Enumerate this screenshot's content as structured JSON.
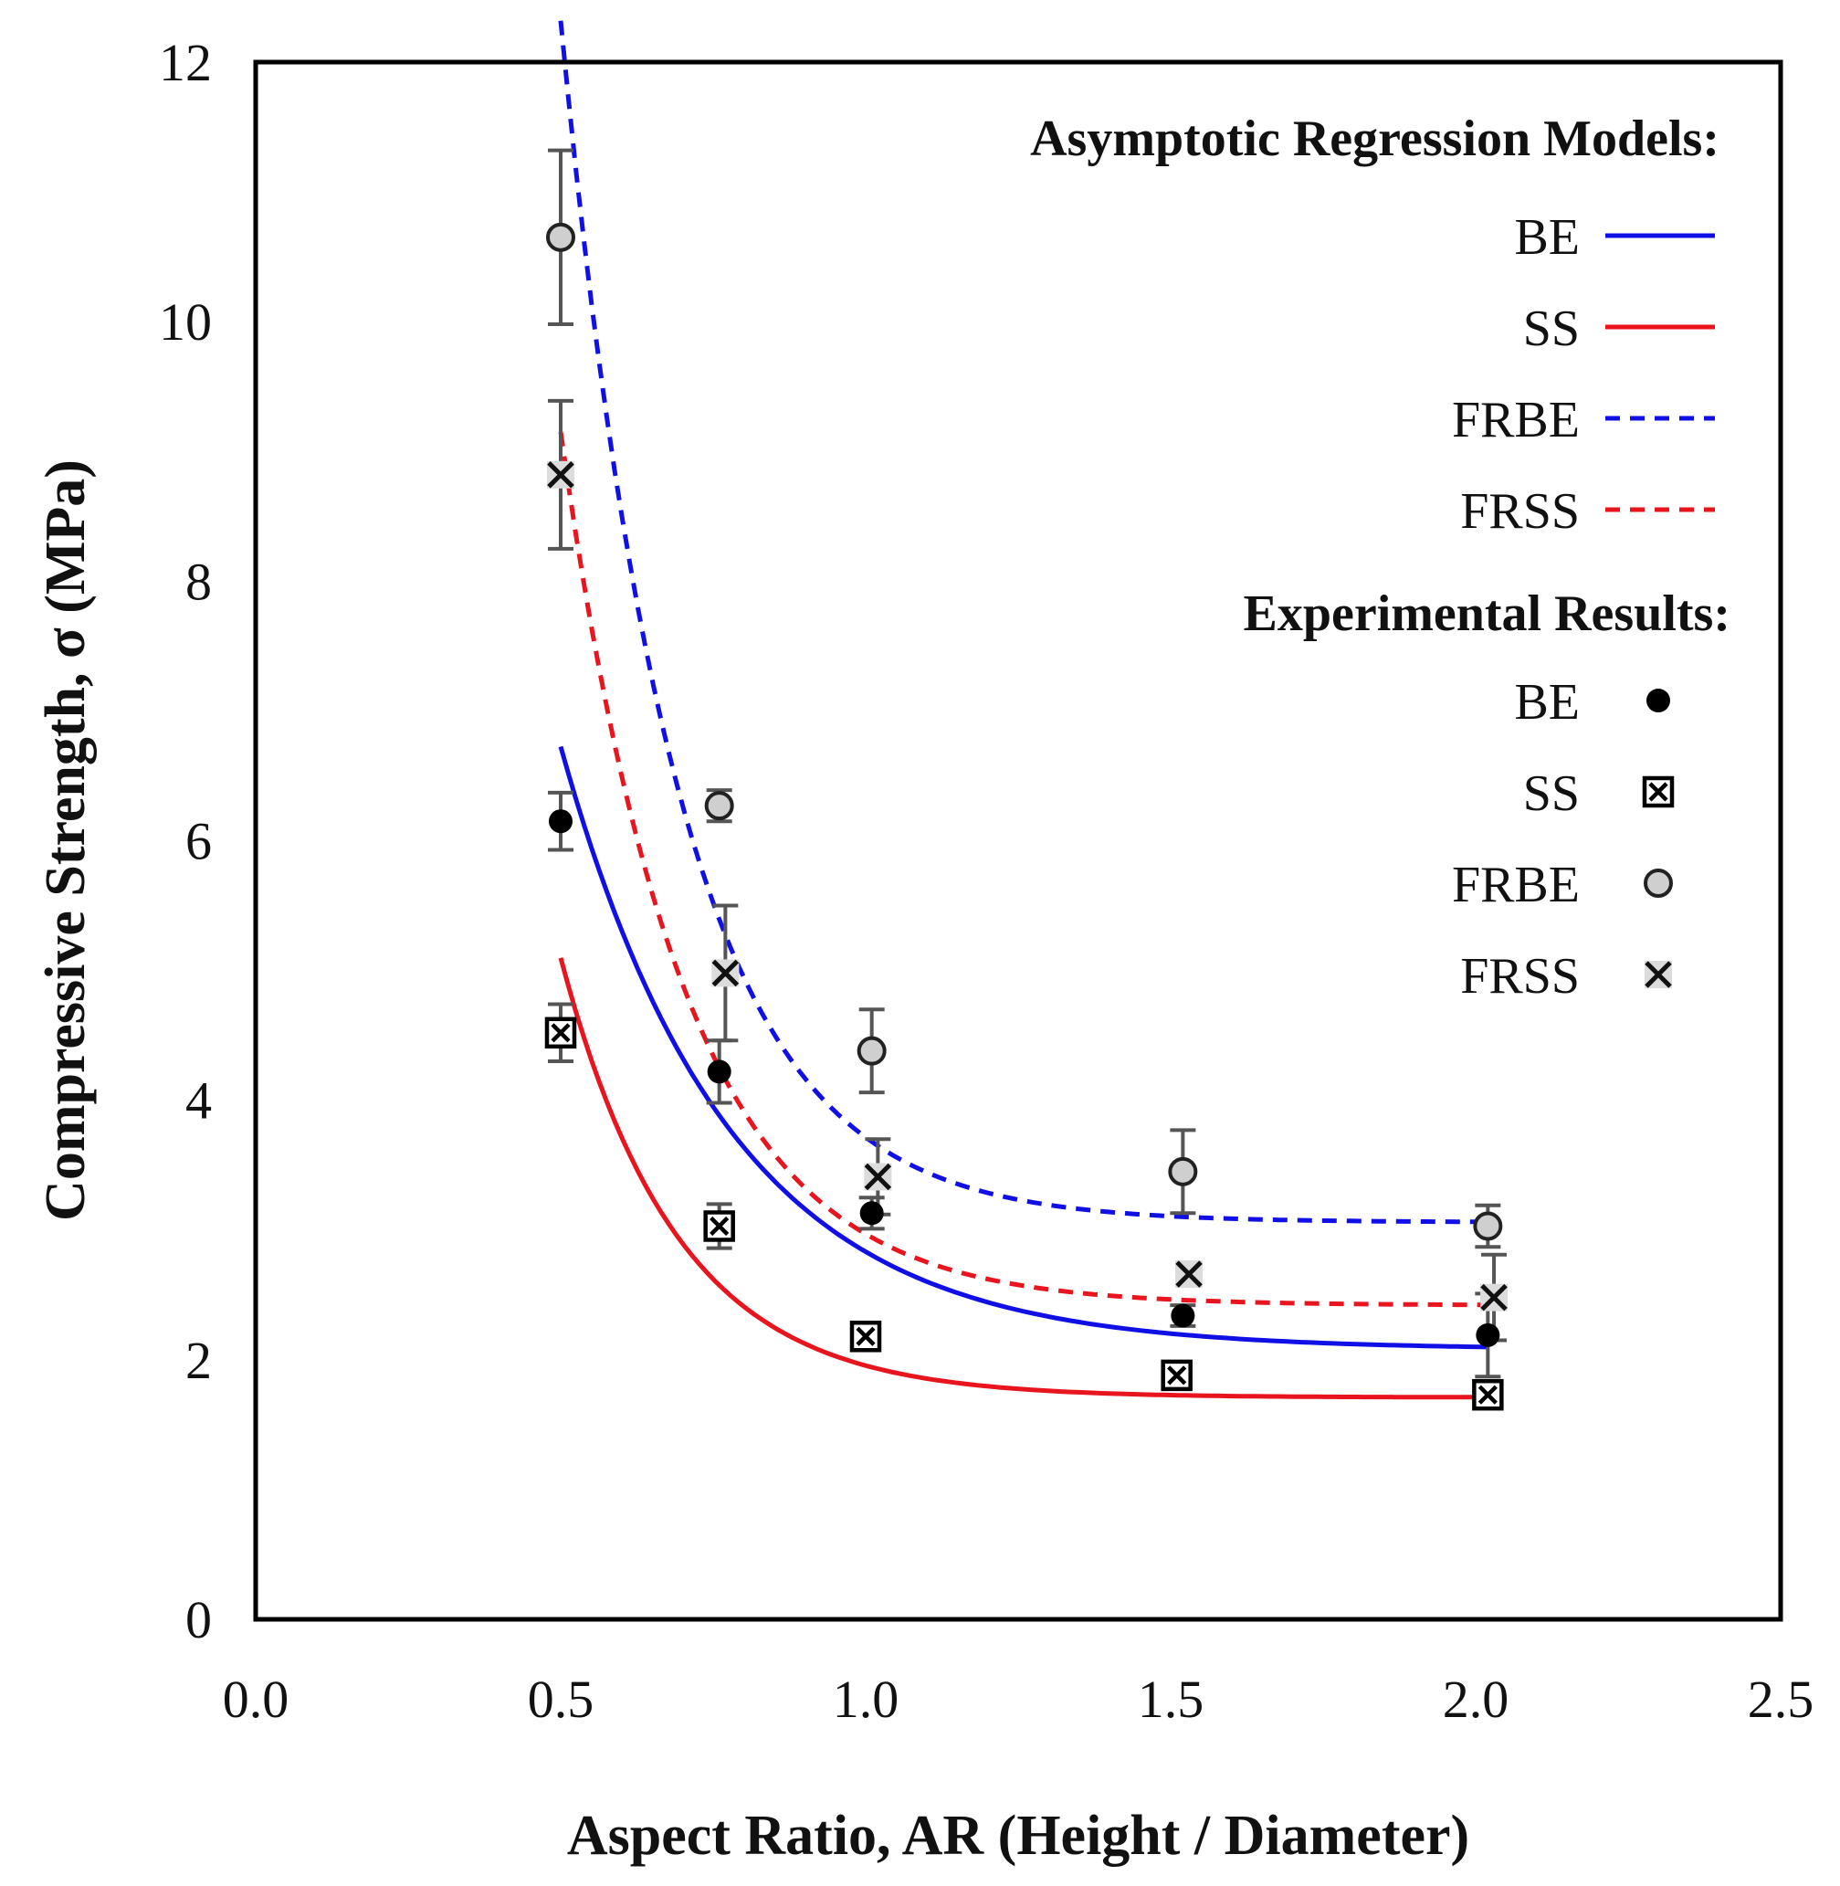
{
  "chart_data": {
    "type": "scatter",
    "xlabel": "Aspect Ratio, AR (Height / Diameter)",
    "ylabel": "Compressive Strength, σ (MPa)",
    "xlim": [
      0.0,
      2.5
    ],
    "ylim": [
      0,
      12
    ],
    "x_ticks": [
      "0.0",
      "0.5",
      "1.0",
      "1.5",
      "2.0",
      "2.5"
    ],
    "y_ticks": [
      "0",
      "2",
      "4",
      "6",
      "8",
      "10",
      "12"
    ],
    "grid": false,
    "legend_position": "top-right",
    "legend": {
      "models_heading": "Asymptotic Regression Models:",
      "results_heading": "Experimental Results:",
      "models": [
        {
          "label": "BE",
          "color": "#1010e6",
          "style": "solid"
        },
        {
          "label": "SS",
          "color": "#e8141e",
          "style": "solid"
        },
        {
          "label": "FRBE",
          "color": "#1010e6",
          "style": "dashed"
        },
        {
          "label": "FRSS",
          "color": "#e8141e",
          "style": "dashed"
        }
      ],
      "results": [
        {
          "label": "BE",
          "marker": "filled-circle"
        },
        {
          "label": "SS",
          "marker": "boxed-x"
        },
        {
          "label": "FRBE",
          "marker": "gray-circle"
        },
        {
          "label": "FRSS",
          "marker": "x-on-gray"
        }
      ]
    },
    "experimental": [
      {
        "name": "BE",
        "marker": "filled-circle",
        "x": [
          0.5,
          0.76,
          1.01,
          1.52,
          2.02
        ],
        "y": [
          6.15,
          4.22,
          3.13,
          2.34,
          2.19
        ],
        "err": [
          0.22,
          0.24,
          0.12,
          0.08,
          0.32
        ]
      },
      {
        "name": "SS",
        "marker": "boxed-x",
        "x": [
          0.5,
          0.76,
          1.0,
          1.51,
          2.02
        ],
        "y": [
          4.52,
          3.03,
          2.18,
          1.88,
          1.73
        ],
        "err": [
          0.22,
          0.17,
          0.1,
          0.04,
          0.04
        ]
      },
      {
        "name": "FRBE",
        "marker": "gray-circle",
        "x": [
          0.5,
          0.76,
          1.01,
          1.52,
          2.02
        ],
        "y": [
          10.65,
          6.27,
          4.38,
          3.45,
          3.03
        ],
        "err": [
          0.67,
          0.12,
          0.32,
          0.32,
          0.16
        ]
      },
      {
        "name": "FRSS",
        "marker": "x-on-gray",
        "x": [
          0.5,
          0.77,
          1.02,
          1.53,
          2.03
        ],
        "y": [
          8.82,
          4.98,
          3.41,
          2.66,
          2.48
        ],
        "err": [
          0.57,
          0.52,
          0.29,
          0.06,
          0.33
        ]
      }
    ],
    "models": [
      {
        "name": "BE",
        "color": "#1010e6",
        "dashed": false,
        "x_range": [
          0.5,
          2.02
        ],
        "a": 2.08,
        "b": 28.67,
        "c": 3.64
      },
      {
        "name": "SS",
        "color": "#e8141e",
        "dashed": false,
        "x_range": [
          0.5,
          2.02
        ],
        "a": 1.71,
        "b": 46.76,
        "c": 5.25
      },
      {
        "name": "FRBE",
        "color": "#1010e6",
        "dashed": true,
        "x_range": [
          0.5,
          2.02
        ],
        "a": 3.06,
        "b": 131.05,
        "c": 5.3
      },
      {
        "name": "FRSS",
        "color": "#e8141e",
        "dashed": true,
        "x_range": [
          0.5,
          2.02
        ],
        "a": 2.42,
        "b": 82.4,
        "c": 5.01
      }
    ]
  }
}
